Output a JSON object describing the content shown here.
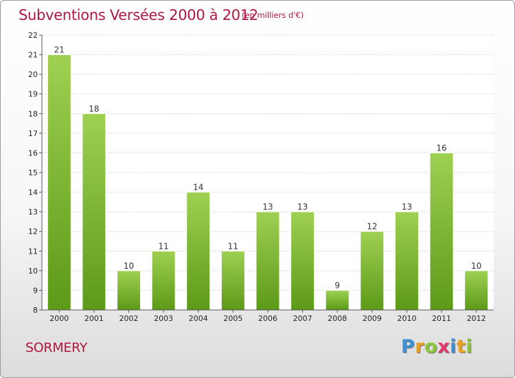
{
  "header": {
    "title": "Subventions Versées 2000 à 2012",
    "subtitle": "(en milliers d'€)"
  },
  "footer": {
    "place": "SORMERY",
    "logo": [
      "P",
      "r",
      "o",
      "x",
      "i",
      "t",
      "i"
    ],
    "logo_colors": [
      "#3d8fd6",
      "#e8a21d",
      "#8cc63e",
      "#e03b6b",
      "#3d8fd6",
      "#e8a21d",
      "#8cc63e"
    ]
  },
  "chart_data": {
    "type": "bar",
    "title": "Subventions Versées 2000 à 2012",
    "subtitle": "(en milliers d'€)",
    "categories": [
      "2000",
      "2001",
      "2002",
      "2003",
      "2004",
      "2005",
      "2006",
      "2007",
      "2008",
      "2009",
      "2010",
      "2011",
      "2012"
    ],
    "values": [
      21,
      18,
      10,
      11,
      14,
      11,
      13,
      13,
      9,
      12,
      13,
      16,
      10
    ],
    "ylim": [
      8,
      22
    ],
    "yticks": [
      8,
      9,
      10,
      11,
      12,
      13,
      14,
      15,
      16,
      17,
      18,
      19,
      20,
      21,
      22
    ],
    "grid": true,
    "bar_color": "#7ab832",
    "xlabel": "",
    "ylabel": ""
  }
}
